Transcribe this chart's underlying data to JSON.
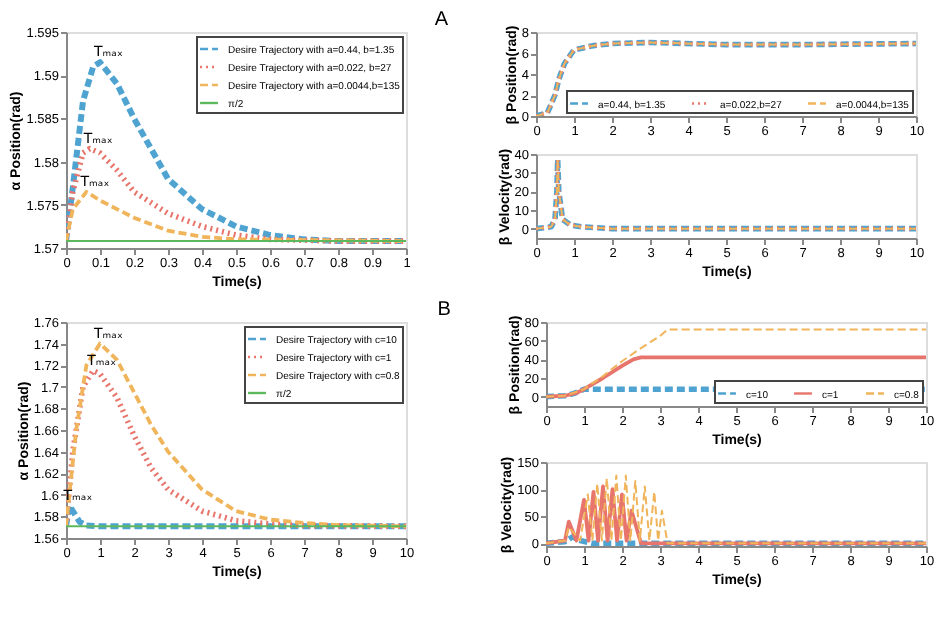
{
  "chart_data": [
    {
      "type": "line",
      "xlabel": "Time(s)",
      "ylabel": "α Position(rad)",
      "xlim": [
        0,
        1
      ],
      "xticks": [
        0,
        0.1,
        0.2,
        0.3,
        0.4,
        0.5,
        0.6,
        0.7,
        0.8,
        0.9,
        1
      ],
      "ylim": [
        1.57,
        1.595
      ],
      "yticks": [
        1.57,
        1.575,
        1.58,
        1.585,
        1.59,
        1.595
      ],
      "legend": "top right",
      "grid": false,
      "series": [
        {
          "name": "Desire Trajectory with a=0.44, b=1.35",
          "color": "#4fa3d1",
          "line_style": "dashed",
          "x": [
            0,
            0.02,
            0.05,
            0.08,
            0.1,
            0.15,
            0.2,
            0.25,
            0.3,
            0.4,
            0.5,
            0.6,
            0.7,
            0.8,
            1
          ],
          "values": [
            1.5708,
            1.577,
            1.587,
            1.591,
            1.5915,
            1.589,
            1.585,
            1.5815,
            1.578,
            1.5745,
            1.5725,
            1.5715,
            1.571,
            1.5708,
            1.5708
          ]
        },
        {
          "name": "Desire Trajectory with a=0.022, b=27",
          "color": "#e8756b",
          "line_style": "dotted",
          "x": [
            0,
            0.02,
            0.05,
            0.07,
            0.1,
            0.15,
            0.2,
            0.3,
            0.4,
            0.5,
            0.6,
            0.8,
            1
          ],
          "values": [
            1.5708,
            1.5765,
            1.581,
            1.5815,
            1.581,
            1.579,
            1.5765,
            1.574,
            1.5725,
            1.5715,
            1.571,
            1.5708,
            1.5708
          ]
        },
        {
          "name": "Desire Trajectory with a=0.0044,b=135",
          "color": "#f0b45a",
          "line_style": "dashed",
          "x": [
            0,
            0.02,
            0.06,
            0.1,
            0.2,
            0.3,
            0.4,
            0.5,
            1
          ],
          "values": [
            1.5708,
            1.5745,
            1.5765,
            1.5755,
            1.5735,
            1.572,
            1.5713,
            1.571,
            1.5708
          ]
        },
        {
          "name": "π/2",
          "color": "#5cb85c",
          "line_style": "solid",
          "x": [
            0,
            1
          ],
          "values": [
            1.5708,
            1.5708
          ]
        }
      ],
      "annotations": [
        {
          "text": "Tₘₐₓ",
          "x": 0.1,
          "y": 1.5915
        },
        {
          "text": "Tₘₐₓ",
          "x": 0.07,
          "y": 1.5815
        },
        {
          "text": "Tₘₐₓ",
          "x": 0.06,
          "y": 1.5765
        }
      ]
    },
    {
      "type": "line",
      "title": "A",
      "ylabel": "β Position(rad)",
      "xlim": [
        0,
        10
      ],
      "xticks": [
        0,
        1,
        2,
        3,
        4,
        5,
        6,
        7,
        8,
        9,
        10
      ],
      "ylim": [
        0,
        8
      ],
      "yticks": [
        0,
        2,
        4,
        6,
        8
      ],
      "legend": "bottom right",
      "grid": false,
      "series": [
        {
          "name": "a=0.44, b=1.35",
          "color": "#4fa3d1",
          "line_style": "dashed",
          "x": [
            0,
            0.3,
            0.5,
            0.6,
            0.75,
            1,
            1.5,
            2,
            3,
            5,
            7,
            10
          ],
          "values": [
            0,
            0.3,
            2,
            3.5,
            5,
            6.3,
            6.7,
            6.9,
            7.0,
            6.8,
            6.8,
            6.9
          ]
        },
        {
          "name": "a=0.022,b=27",
          "color": "#e8756b",
          "line_style": "dotted",
          "x": [
            0,
            0.3,
            0.5,
            0.6,
            0.75,
            1,
            1.5,
            2,
            3,
            5,
            7,
            10
          ],
          "values": [
            0,
            0.3,
            2,
            3.5,
            5,
            6.3,
            6.7,
            6.9,
            7.0,
            6.8,
            6.8,
            6.9
          ]
        },
        {
          "name": "a=0.0044,b=135",
          "color": "#f0b45a",
          "line_style": "dashed",
          "x": [
            0,
            0.3,
            0.5,
            0.6,
            0.75,
            1,
            1.5,
            2,
            3,
            5,
            7,
            10
          ],
          "values": [
            0,
            0.3,
            2,
            3.5,
            5,
            6.3,
            6.7,
            6.9,
            7.0,
            6.8,
            6.8,
            6.9
          ]
        }
      ]
    },
    {
      "type": "line",
      "xlabel": "Time(s)",
      "ylabel": "β Velocity(rad)",
      "xlim": [
        0,
        10
      ],
      "xticks": [
        0,
        1,
        2,
        3,
        4,
        5,
        6,
        7,
        8,
        9,
        10
      ],
      "ylim": [
        -5,
        40
      ],
      "yticks": [
        0,
        10,
        20,
        30,
        40
      ],
      "legend": false,
      "grid": false,
      "series": [
        {
          "color": "#4fa3d1",
          "line_style": "dashed",
          "x": [
            0,
            0.4,
            0.5,
            0.55,
            0.57,
            0.6,
            0.7,
            0.9,
            1.2,
            2,
            10
          ],
          "values": [
            0,
            1,
            5,
            20,
            37,
            20,
            5,
            2,
            1,
            0,
            0
          ]
        },
        {
          "color": "#e8756b",
          "line_style": "dotted",
          "x": [
            0,
            0.4,
            0.5,
            0.55,
            0.57,
            0.6,
            0.7,
            0.9,
            1.2,
            2,
            10
          ],
          "values": [
            0,
            1,
            5,
            20,
            37,
            20,
            5,
            2,
            1,
            0,
            0
          ]
        },
        {
          "color": "#f0b45a",
          "line_style": "dashed",
          "x": [
            0,
            0.4,
            0.5,
            0.55,
            0.57,
            0.6,
            0.7,
            0.9,
            1.2,
            2,
            10
          ],
          "values": [
            0,
            1,
            5,
            20,
            37,
            20,
            5,
            2,
            1,
            0,
            0
          ]
        }
      ]
    },
    {
      "type": "line",
      "xlabel": "Time(s)",
      "ylabel": "α Position(rad)",
      "xlim": [
        0,
        10
      ],
      "xticks": [
        0,
        1,
        2,
        3,
        4,
        5,
        6,
        7,
        8,
        9,
        10
      ],
      "ylim": [
        1.56,
        1.76
      ],
      "yticks": [
        1.56,
        1.58,
        1.6,
        1.62,
        1.64,
        1.66,
        1.68,
        1.7,
        1.72,
        1.74,
        1.76
      ],
      "legend": "top right",
      "grid": false,
      "series": [
        {
          "name": "Desire Trajectory with c=10",
          "color": "#4fa3d1",
          "line_style": "dashed",
          "x": [
            0,
            0.1,
            0.2,
            0.4,
            0.6,
            1,
            10
          ],
          "values": [
            1.5708,
            1.59,
            1.585,
            1.575,
            1.5715,
            1.5708,
            1.5708
          ]
        },
        {
          "name": "Desire Trajectory with c=1",
          "color": "#e8756b",
          "line_style": "dotted",
          "x": [
            0,
            0.2,
            0.5,
            0.8,
            1,
            1.5,
            2,
            2.5,
            3,
            4,
            5,
            6,
            7,
            10
          ],
          "values": [
            1.5708,
            1.64,
            1.7,
            1.715,
            1.712,
            1.69,
            1.655,
            1.625,
            1.605,
            1.585,
            1.576,
            1.573,
            1.5715,
            1.5708
          ]
        },
        {
          "name": "Desire Trajectory with c=0.8",
          "color": "#f0b45a",
          "line_style": "dashed",
          "x": [
            0,
            0.3,
            0.6,
            1,
            1.5,
            2,
            2.5,
            3,
            4,
            5,
            6,
            7,
            8,
            10
          ],
          "values": [
            1.5708,
            1.66,
            1.72,
            1.74,
            1.725,
            1.695,
            1.665,
            1.64,
            1.605,
            1.585,
            1.577,
            1.574,
            1.572,
            1.5708
          ]
        },
        {
          "name": "π/2",
          "color": "#5cb85c",
          "line_style": "solid",
          "x": [
            0,
            10
          ],
          "values": [
            1.5708,
            1.5708
          ]
        }
      ],
      "annotations": [
        {
          "text": "Tₘₐₓ",
          "x": 1,
          "y": 1.74
        },
        {
          "text": "Tₘₐₓ",
          "x": 0.8,
          "y": 1.715
        },
        {
          "text": "Tₘₐₓ",
          "x": 0.1,
          "y": 1.59
        }
      ]
    },
    {
      "type": "line",
      "title": "B",
      "xlabel": "Time(s)",
      "ylabel": "β Position(rad)",
      "xlim": [
        0,
        10
      ],
      "xticks": [
        0,
        1,
        2,
        3,
        4,
        5,
        6,
        7,
        8,
        9,
        10
      ],
      "ylim": [
        -10,
        80
      ],
      "yticks": [
        0,
        20,
        40,
        60,
        80
      ],
      "legend": "bottom right",
      "grid": false,
      "series": [
        {
          "name": "c=10",
          "color": "#4fa3d1",
          "line_style": "dashed",
          "x": [
            0,
            0.5,
            0.7,
            0.9,
            1,
            10
          ],
          "values": [
            0,
            1,
            3,
            6,
            8,
            8
          ]
        },
        {
          "name": "c=1",
          "color": "#e8756b",
          "line_style": "solid",
          "x": [
            0,
            0.5,
            0.8,
            1,
            1.5,
            2,
            2.3,
            2.5,
            10
          ],
          "values": [
            0,
            1,
            4,
            8,
            20,
            33,
            40,
            42,
            42
          ]
        },
        {
          "name": "c=0.8",
          "color": "#f0b45a",
          "line_style": "dashed",
          "x": [
            0,
            0.5,
            1,
            1.5,
            2,
            2.5,
            3,
            3.2,
            10
          ],
          "values": [
            0,
            1,
            8,
            22,
            38,
            52,
            65,
            72,
            72
          ]
        }
      ]
    },
    {
      "type": "line",
      "xlabel": "Time(s)",
      "ylabel": "β Velocity(rad)",
      "xlim": [
        0,
        10
      ],
      "xticks": [
        0,
        1,
        2,
        3,
        4,
        5,
        6,
        7,
        8,
        9,
        10
      ],
      "ylim": [
        -5,
        150
      ],
      "yticks": [
        0,
        50,
        100,
        150
      ],
      "legend": false,
      "grid": false,
      "series": [
        {
          "color": "#4fa3d1",
          "line_style": "dashed",
          "x": [
            0,
            0.5,
            0.7,
            0.9,
            1.2,
            10
          ],
          "values": [
            0,
            3,
            12,
            5,
            0,
            0
          ]
        },
        {
          "color": "#e8756b",
          "line_style": "solid",
          "x": [
            0,
            0.5,
            0.6,
            0.8,
            1.0,
            1.12,
            1.25,
            1.37,
            1.5,
            1.62,
            1.75,
            1.87,
            2.0,
            2.12,
            2.25,
            2.5,
            10
          ],
          "values": [
            0,
            5,
            40,
            5,
            80,
            5,
            95,
            5,
            105,
            5,
            100,
            5,
            90,
            5,
            60,
            0,
            0
          ]
        },
        {
          "color": "#f0b45a",
          "line_style": "dashed",
          "x": [
            0,
            0.5,
            0.6,
            0.9,
            1.1,
            1.22,
            1.35,
            1.47,
            1.6,
            1.72,
            1.85,
            1.97,
            2.1,
            2.22,
            2.35,
            2.47,
            2.6,
            2.72,
            2.85,
            2.95,
            3.05,
            3.2,
            10
          ],
          "values": [
            0,
            5,
            30,
            5,
            90,
            5,
            110,
            5,
            120,
            5,
            125,
            5,
            125,
            5,
            115,
            5,
            105,
            5,
            95,
            5,
            60,
            0,
            0
          ]
        }
      ]
    }
  ]
}
